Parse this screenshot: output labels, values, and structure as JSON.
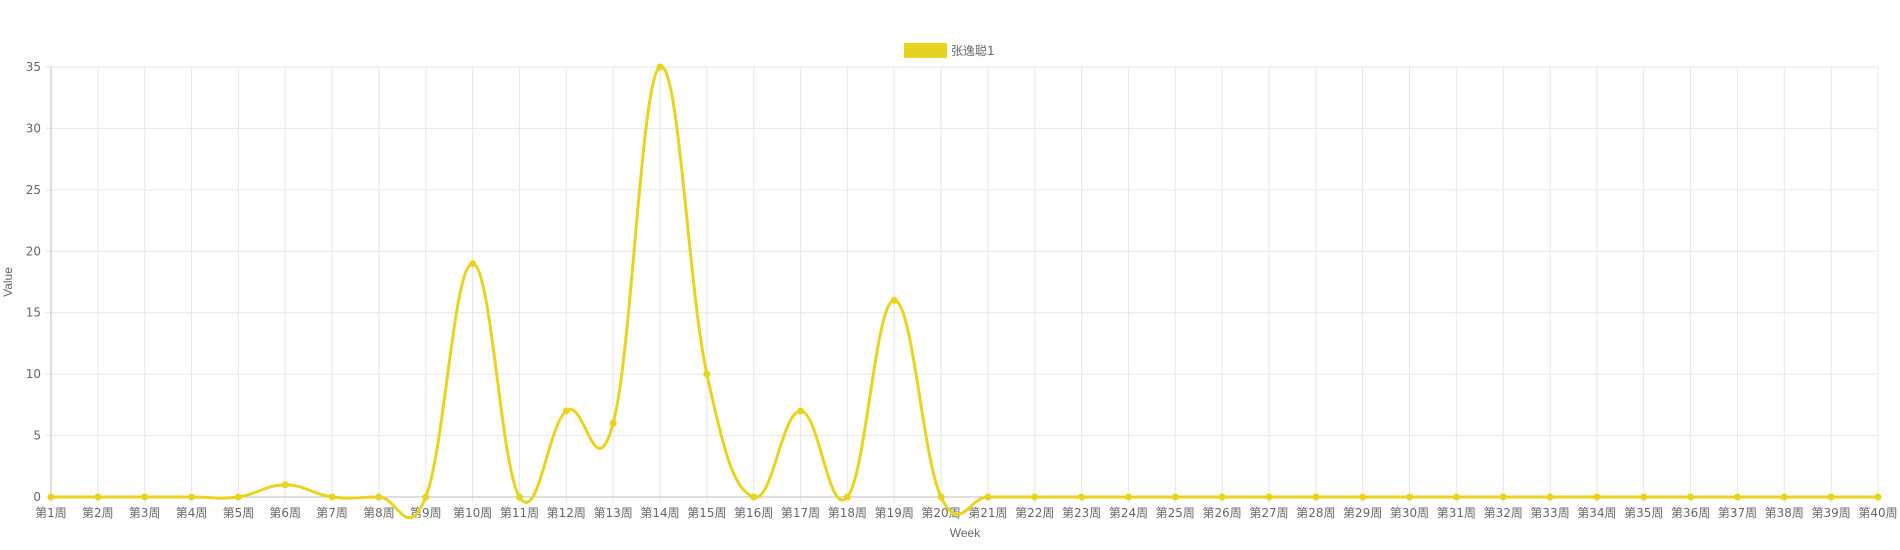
{
  "chart_data": {
    "type": "line",
    "xlabel": "Week",
    "ylabel": "Value",
    "ylim": [
      0,
      35
    ],
    "y_ticks": [
      0,
      5,
      10,
      15,
      20,
      25,
      30,
      35
    ],
    "grid": true,
    "legend_position": "top-center",
    "categories": [
      "第1周",
      "第2周",
      "第3周",
      "第4周",
      "第5周",
      "第6周",
      "第7周",
      "第8周",
      "第9周",
      "第10周",
      "第11周",
      "第12周",
      "第13周",
      "第14周",
      "第15周",
      "第16周",
      "第17周",
      "第18周",
      "第19周",
      "第20周",
      "第21周",
      "第22周",
      "第23周",
      "第24周",
      "第25周",
      "第26周",
      "第27周",
      "第28周",
      "第29周",
      "第30周",
      "第31周",
      "第32周",
      "第33周",
      "第34周",
      "第35周",
      "第36周",
      "第37周",
      "第38周",
      "第39周",
      "第40周"
    ],
    "series": [
      {
        "name": "张逸聪1",
        "color": "#e8d31f",
        "values": [
          0,
          0,
          0,
          0,
          0,
          1,
          0,
          0,
          0,
          19,
          0,
          7,
          6,
          35,
          10,
          0,
          7,
          0,
          16,
          0,
          0,
          0,
          0,
          0,
          0,
          0,
          0,
          0,
          0,
          0,
          0,
          0,
          0,
          0,
          0,
          0,
          0,
          0,
          0,
          0
        ]
      }
    ]
  },
  "colors": {
    "grid": "#e6e6e6",
    "axis": "#bdbdbd",
    "text": "#666666"
  }
}
